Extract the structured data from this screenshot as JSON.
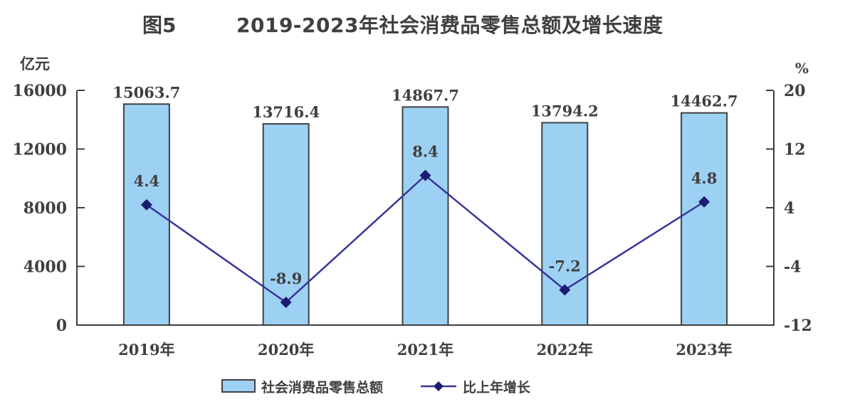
{
  "title": {
    "figure_label": "图5",
    "text": "2019-2023年社会消费品零售总额及增长速度"
  },
  "chart_data": {
    "type": "bar+line",
    "categories": [
      "2019年",
      "2020年",
      "2021年",
      "2022年",
      "2023年"
    ],
    "series": [
      {
        "name": "社会消费品零售总额",
        "type": "bar",
        "axis": "left",
        "values": [
          15063.7,
          13716.4,
          14867.7,
          13794.2,
          14462.7
        ],
        "labels": [
          "15063.7",
          "13716.4",
          "14867.7",
          "13794.2",
          "14462.7"
        ]
      },
      {
        "name": "比上年增长",
        "type": "line",
        "axis": "right",
        "values": [
          4.4,
          -8.9,
          8.4,
          -7.2,
          4.8
        ],
        "labels": [
          "4.4",
          "-8.9",
          "8.4",
          "-7.2",
          "4.8"
        ]
      }
    ],
    "left_axis": {
      "unit": "亿元",
      "min": 0,
      "max": 16000,
      "ticks": [
        0,
        4000,
        8000,
        12000,
        16000
      ]
    },
    "right_axis": {
      "unit": "%",
      "min": -12,
      "max": 20,
      "ticks": [
        -12,
        -4,
        4,
        12,
        20
      ]
    },
    "legend": [
      {
        "label": "社会消费品零售总额",
        "type": "bar"
      },
      {
        "label": "比上年增长",
        "type": "line"
      }
    ],
    "grid": false,
    "legend_position": "bottom-center",
    "colors": {
      "bar_fill": "#9DD1F4",
      "bar_border": "#404040",
      "line": "#35359B",
      "marker": "#1C1C70",
      "axis": "#404040",
      "text": "#3F3F3F"
    }
  }
}
